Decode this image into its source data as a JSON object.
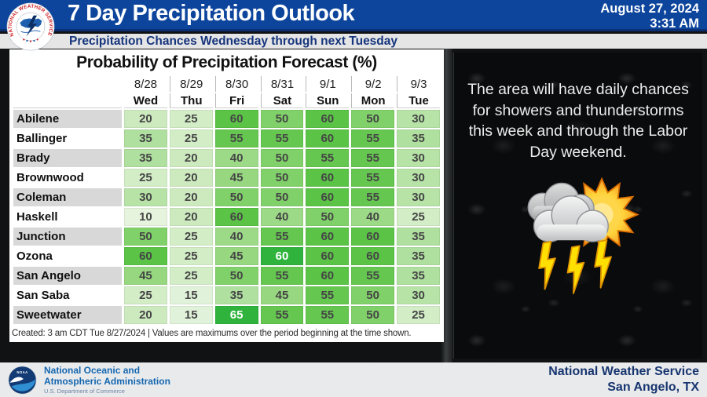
{
  "header": {
    "title": "7 Day Precipitation Outlook",
    "date": "August 27, 2024",
    "time": "3:31 AM",
    "subtitle": "Precipitation Chances Wednesday through next Tuesday",
    "nws_logo_text": "NATIONAL WEATHER SERVICE"
  },
  "chart_data": {
    "type": "table",
    "title": "Probability of Precipitation Forecast (%)",
    "columns": [
      {
        "date": "8/28",
        "day": "Wed"
      },
      {
        "date": "8/29",
        "day": "Thu"
      },
      {
        "date": "8/30",
        "day": "Fri"
      },
      {
        "date": "8/31",
        "day": "Sat"
      },
      {
        "date": "9/1",
        "day": "Sun"
      },
      {
        "date": "9/2",
        "day": "Mon"
      },
      {
        "date": "9/3",
        "day": "Tue"
      }
    ],
    "rows": [
      {
        "city": "Abilene",
        "values": [
          20,
          25,
          60,
          50,
          60,
          50,
          30
        ]
      },
      {
        "city": "Ballinger",
        "values": [
          35,
          25,
          55,
          55,
          60,
          55,
          35
        ]
      },
      {
        "city": "Brady",
        "values": [
          35,
          20,
          40,
          50,
          55,
          55,
          30
        ]
      },
      {
        "city": "Brownwood",
        "values": [
          25,
          20,
          45,
          50,
          60,
          55,
          30
        ]
      },
      {
        "city": "Coleman",
        "values": [
          30,
          20,
          50,
          50,
          60,
          55,
          30
        ]
      },
      {
        "city": "Haskell",
        "values": [
          10,
          20,
          60,
          40,
          50,
          40,
          25
        ]
      },
      {
        "city": "Junction",
        "values": [
          50,
          25,
          40,
          55,
          60,
          60,
          35
        ]
      },
      {
        "city": "Ozona",
        "values": [
          60,
          25,
          45,
          60,
          60,
          60,
          35
        ]
      },
      {
        "city": "San Angelo",
        "values": [
          45,
          25,
          50,
          55,
          60,
          55,
          35
        ]
      },
      {
        "city": "San Saba",
        "values": [
          25,
          15,
          35,
          45,
          55,
          50,
          30
        ]
      },
      {
        "city": "Sweetwater",
        "values": [
          20,
          15,
          65,
          55,
          55,
          50,
          25
        ]
      }
    ],
    "highlight_cells": [
      {
        "city": "Ozona",
        "col": 3
      },
      {
        "city": "Sweetwater",
        "col": 2
      }
    ],
    "color_scale": {
      "10": "#e6f4de",
      "15": "#e0f2d9",
      "20": "#cdeabf",
      "25": "#d3edc7",
      "30": "#b7e3a7",
      "35": "#b0e09f",
      "40": "#9dda88",
      "45": "#96d780",
      "50": "#81d16a",
      "55": "#65c750",
      "60": "#5bc447",
      "65": "#2fb33d"
    },
    "highlight_color": "#2fb33d",
    "note": "Created: 3 am CDT Tue 8/27/2024  |  Values are maximums over the period beginning at the time shown."
  },
  "right_panel": {
    "summary": "The area will have daily chances for showers and thunderstorms this week and through the Labor Day weekend."
  },
  "footer": {
    "noaa_abbr": "NOAA",
    "noaa_line1": "National Oceanic and",
    "noaa_line2": "Atmospheric Administration",
    "noaa_line3": "U.S. Department of Commerce",
    "nws_line1": "National Weather Service",
    "nws_line2": "San Angelo, TX"
  },
  "icons": {
    "nws_seal": "nws-seal-icon",
    "noaa_seal": "noaa-seal-icon",
    "weather": "sun-clouds-lightning-icon"
  },
  "colors": {
    "header_blue": "#0d459c",
    "subtitle_text": "#16357c",
    "footer_blue": "#1467b0",
    "office_text": "#17356f"
  }
}
